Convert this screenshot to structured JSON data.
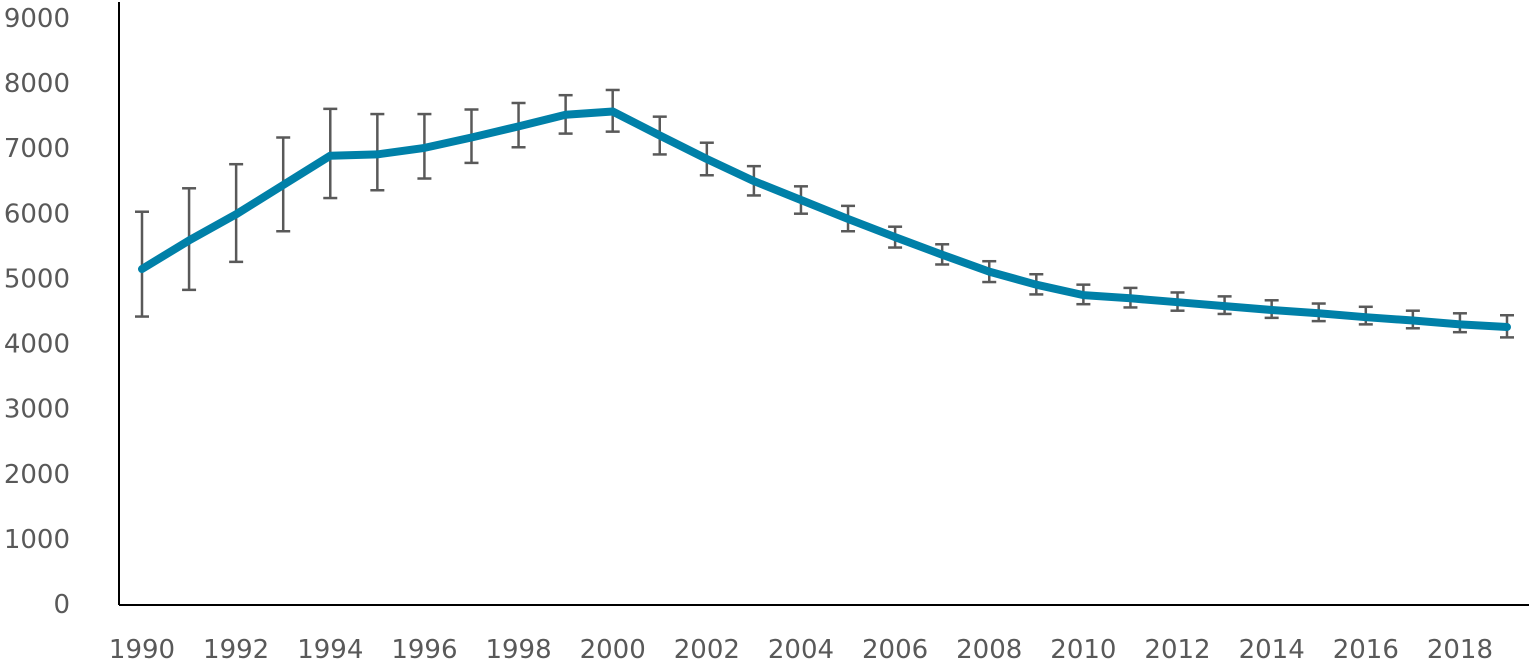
{
  "chart_data": {
    "type": "line",
    "title": "",
    "xlabel": "",
    "ylabel": "",
    "ylim": [
      0,
      9000
    ],
    "xlim": [
      1990,
      2019
    ],
    "y_ticks": [
      "0",
      "1000",
      "2000",
      "3000",
      "4000",
      "5000",
      "6000",
      "7000",
      "8000",
      "9000"
    ],
    "x_ticks": [
      "1990",
      "1992",
      "1994",
      "1996",
      "1998",
      "2000",
      "2002",
      "2004",
      "2006",
      "2008",
      "2010",
      "2012",
      "2014",
      "2016",
      "2018"
    ],
    "grid": false,
    "legend": "none",
    "x": [
      1990,
      1991,
      1992,
      1993,
      1994,
      1995,
      1996,
      1997,
      1998,
      1999,
      2000,
      2001,
      2002,
      2003,
      2004,
      2005,
      2006,
      2007,
      2008,
      2009,
      2010,
      2011,
      2012,
      2013,
      2014,
      2015,
      2016,
      2017,
      2018,
      2019
    ],
    "series": [
      {
        "color": "#0080A8",
        "values": [
          5160,
          5600,
          6000,
          6450,
          6900,
          6920,
          7020,
          7180,
          7350,
          7530,
          7580,
          7210,
          6850,
          6510,
          6220,
          5930,
          5650,
          5380,
          5120,
          4920,
          4760,
          4710,
          4650,
          4590,
          4530,
          4480,
          4420,
          4370,
          4310,
          4270
        ],
        "error_low": [
          4430,
          4840,
          5270,
          5740,
          6250,
          6370,
          6550,
          6790,
          7030,
          7240,
          7270,
          6920,
          6600,
          6290,
          6010,
          5740,
          5490,
          5230,
          4960,
          4770,
          4620,
          4570,
          4520,
          4470,
          4410,
          4360,
          4310,
          4250,
          4190,
          4110
        ],
        "error_high": [
          6040,
          6400,
          6770,
          7180,
          7620,
          7540,
          7540,
          7610,
          7710,
          7830,
          7910,
          7500,
          7100,
          6740,
          6430,
          6130,
          5810,
          5540,
          5280,
          5080,
          4920,
          4870,
          4800,
          4740,
          4680,
          4630,
          4580,
          4520,
          4480,
          4450
        ]
      }
    ]
  }
}
